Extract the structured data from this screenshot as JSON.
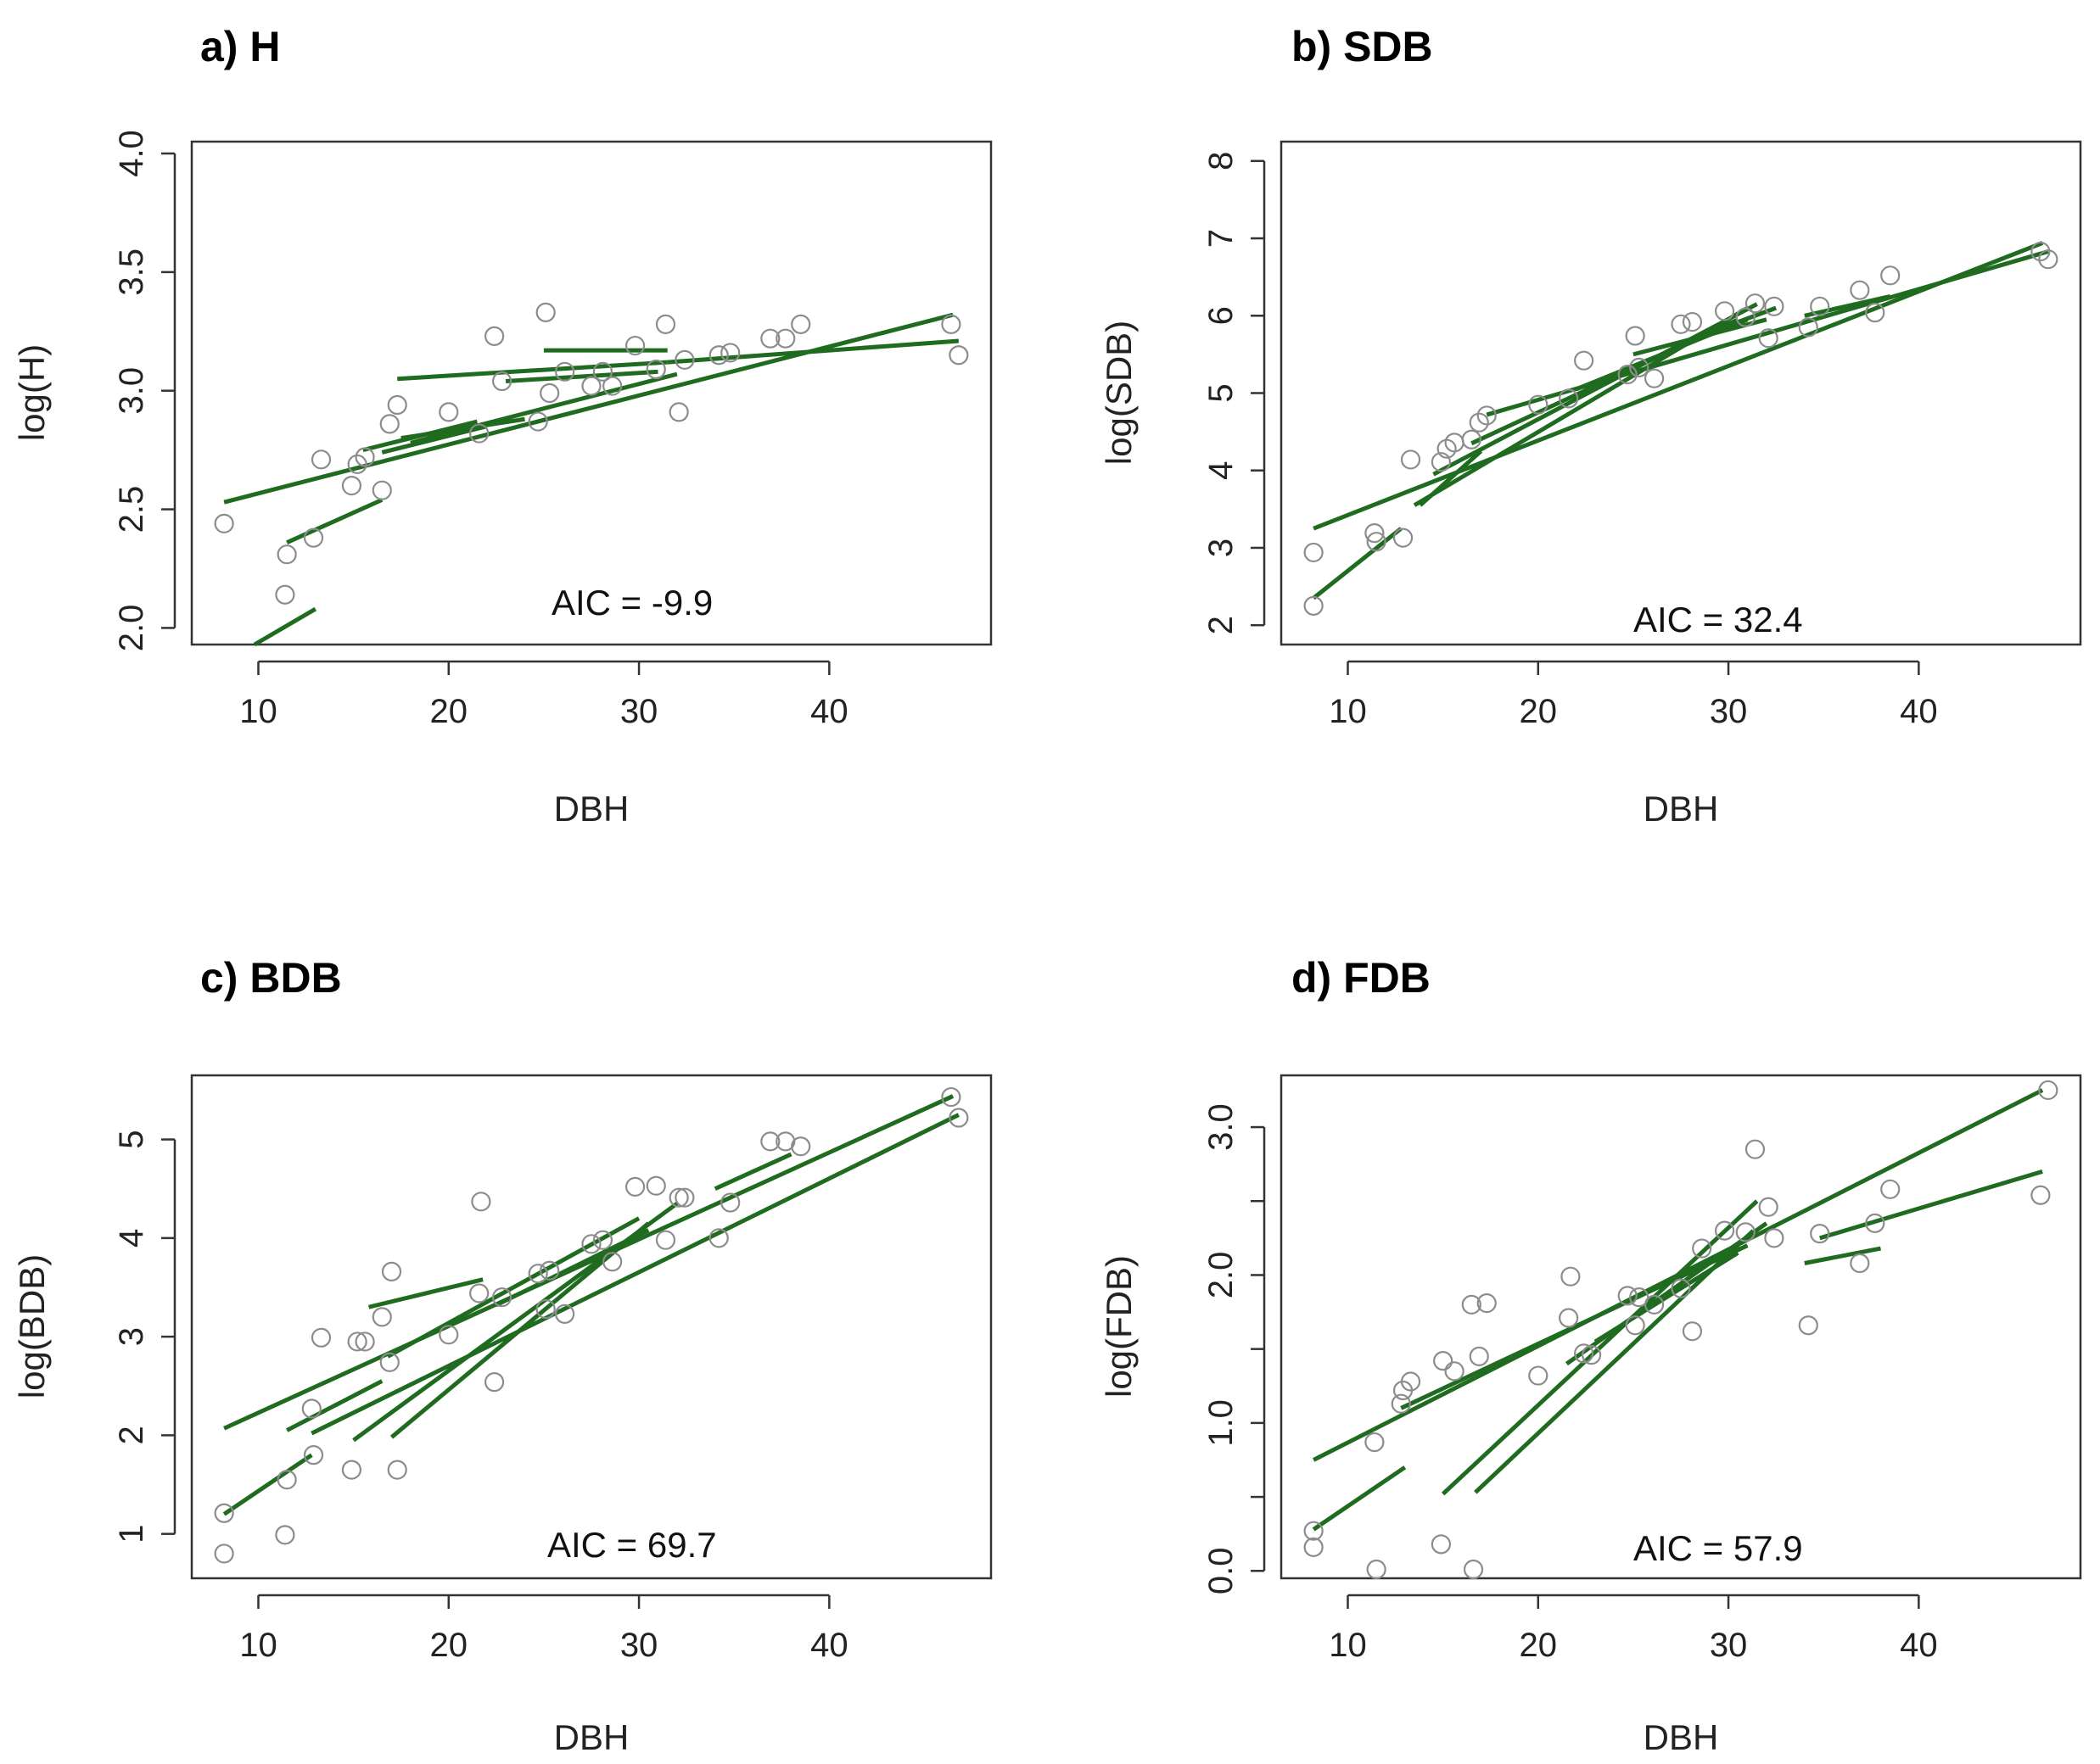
{
  "colors": {
    "fit_line": "#1f6b1f",
    "point_stroke": "#8c8c8c",
    "frame": "#333333"
  },
  "chart_data": [
    {
      "type": "scatter",
      "title": "a) H",
      "xlabel": "DBH",
      "ylabel": "log(H)",
      "annotation": "AIC = -9.9",
      "xlim": [
        6.5,
        48.5
      ],
      "ylim": [
        1.93,
        4.05
      ],
      "xticks": [
        10,
        20,
        30,
        40
      ],
      "xtick_labels": [
        "10",
        "20",
        "30",
        "40"
      ],
      "yticks": [
        2.0,
        2.5,
        3.0,
        3.5,
        4.0
      ],
      "ytick_labels": [
        "2.0",
        "2.5",
        "3.0",
        "3.5",
        "4.0"
      ],
      "points": [
        [
          8.2,
          2.44
        ],
        [
          11.4,
          2.14
        ],
        [
          11.5,
          2.31
        ],
        [
          12.9,
          2.38
        ],
        [
          13.3,
          2.71
        ],
        [
          14.9,
          2.6
        ],
        [
          15.2,
          2.69
        ],
        [
          15.6,
          2.72
        ],
        [
          16.5,
          2.58
        ],
        [
          16.9,
          2.86
        ],
        [
          17.3,
          2.94
        ],
        [
          20.0,
          2.91
        ],
        [
          21.6,
          2.82
        ],
        [
          22.4,
          3.23
        ],
        [
          22.8,
          3.04
        ],
        [
          24.7,
          2.87
        ],
        [
          25.1,
          3.33
        ],
        [
          25.3,
          2.99
        ],
        [
          26.1,
          3.08
        ],
        [
          27.5,
          3.02
        ],
        [
          28.1,
          3.08
        ],
        [
          28.6,
          3.02
        ],
        [
          29.8,
          3.19
        ],
        [
          30.9,
          3.09
        ],
        [
          31.4,
          3.28
        ],
        [
          32.1,
          2.91
        ],
        [
          32.4,
          3.13
        ],
        [
          34.2,
          3.15
        ],
        [
          34.8,
          3.16
        ],
        [
          36.9,
          3.22
        ],
        [
          37.7,
          3.22
        ],
        [
          38.5,
          3.28
        ],
        [
          46.4,
          3.28
        ],
        [
          46.8,
          3.15
        ]
      ],
      "fit_lines": [
        [
          [
            8.2,
            2.53
          ],
          [
            46.5,
            3.32
          ]
        ],
        [
          [
            17.3,
            3.05
          ],
          [
            31.5,
            3.12
          ]
        ],
        [
          [
            31.5,
            3.12
          ],
          [
            46.8,
            3.21
          ]
        ],
        [
          [
            23.0,
            3.04
          ],
          [
            31.0,
            3.08
          ]
        ],
        [
          [
            25.0,
            3.17
          ],
          [
            31.5,
            3.17
          ]
        ],
        [
          [
            15.5,
            2.75
          ],
          [
            21.5,
            2.87
          ]
        ],
        [
          [
            16.5,
            2.74
          ],
          [
            22.0,
            2.85
          ]
        ],
        [
          [
            18.0,
            2.78
          ],
          [
            32.0,
            3.07
          ]
        ],
        [
          [
            17.5,
            2.8
          ],
          [
            24.0,
            2.88
          ]
        ],
        [
          [
            11.5,
            2.36
          ],
          [
            16.5,
            2.54
          ]
        ],
        [
          [
            9.8,
            1.93
          ],
          [
            13.0,
            2.08
          ]
        ]
      ]
    },
    {
      "type": "scatter",
      "title": "b) SDB",
      "xlabel": "DBH",
      "ylabel": "log(SDB)",
      "annotation": "AIC = 32.4",
      "xlim": [
        6.5,
        48.5
      ],
      "ylim": [
        1.75,
        8.25
      ],
      "xticks": [
        10,
        20,
        30,
        40
      ],
      "xtick_labels": [
        "10",
        "20",
        "30",
        "40"
      ],
      "yticks": [
        2,
        3,
        4,
        5,
        6,
        7,
        8
      ],
      "ytick_labels": [
        "2",
        "3",
        "4",
        "5",
        "6",
        "7",
        "8"
      ],
      "points": [
        [
          8.2,
          2.94
        ],
        [
          8.2,
          2.25
        ],
        [
          11.4,
          3.19
        ],
        [
          11.5,
          3.08
        ],
        [
          12.9,
          3.13
        ],
        [
          13.3,
          4.14
        ],
        [
          14.9,
          4.11
        ],
        [
          15.2,
          4.28
        ],
        [
          15.6,
          4.36
        ],
        [
          16.5,
          4.4
        ],
        [
          16.9,
          4.62
        ],
        [
          17.3,
          4.71
        ],
        [
          20.0,
          4.85
        ],
        [
          21.6,
          4.93
        ],
        [
          22.4,
          5.42
        ],
        [
          24.7,
          5.24
        ],
        [
          25.1,
          5.74
        ],
        [
          25.3,
          5.33
        ],
        [
          26.1,
          5.19
        ],
        [
          27.5,
          5.89
        ],
        [
          28.1,
          5.92
        ],
        [
          29.8,
          6.06
        ],
        [
          30.9,
          5.98
        ],
        [
          31.4,
          6.16
        ],
        [
          32.1,
          5.71
        ],
        [
          32.4,
          6.12
        ],
        [
          34.2,
          5.85
        ],
        [
          34.8,
          6.12
        ],
        [
          36.9,
          6.33
        ],
        [
          37.7,
          6.04
        ],
        [
          38.5,
          6.52
        ],
        [
          46.4,
          6.83
        ],
        [
          46.8,
          6.73
        ]
      ],
      "fit_lines": [
        [
          [
            8.2,
            3.25
          ],
          [
            46.5,
            6.94
          ]
        ],
        [
          [
            17.3,
            4.72
          ],
          [
            46.8,
            6.83
          ]
        ],
        [
          [
            13.5,
            3.55
          ],
          [
            31.0,
            6.1
          ]
        ],
        [
          [
            14.5,
            3.95
          ],
          [
            31.5,
            6.15
          ]
        ],
        [
          [
            16.5,
            4.35
          ],
          [
            30.5,
            5.95
          ]
        ],
        [
          [
            22.0,
            5.05
          ],
          [
            31.0,
            5.95
          ]
        ],
        [
          [
            27.0,
            5.6
          ],
          [
            32.5,
            6.1
          ]
        ],
        [
          [
            34.0,
            6.0
          ],
          [
            38.5,
            6.25
          ]
        ],
        [
          [
            25.0,
            5.5
          ],
          [
            32.0,
            5.95
          ]
        ],
        [
          [
            13.8,
            3.55
          ],
          [
            17.0,
            4.25
          ]
        ],
        [
          [
            8.2,
            2.35
          ],
          [
            12.8,
            3.25
          ]
        ]
      ]
    },
    {
      "type": "scatter",
      "title": "c) BDB",
      "xlabel": "DBH",
      "ylabel": "log(BDB)",
      "annotation": "AIC = 69.7",
      "xlim": [
        6.5,
        48.5
      ],
      "ylim": [
        0.55,
        5.65
      ],
      "xticks": [
        10,
        20,
        30,
        40
      ],
      "xtick_labels": [
        "10",
        "20",
        "30",
        "40"
      ],
      "yticks": [
        1,
        2,
        3,
        4,
        5
      ],
      "ytick_labels": [
        "1",
        "2",
        "3",
        "4",
        "5"
      ],
      "points": [
        [
          8.2,
          1.21
        ],
        [
          8.2,
          0.8
        ],
        [
          11.4,
          0.99
        ],
        [
          11.5,
          1.55
        ],
        [
          12.9,
          1.8
        ],
        [
          13.3,
          2.99
        ],
        [
          12.8,
          2.27
        ],
        [
          14.9,
          1.65
        ],
        [
          15.2,
          2.95
        ],
        [
          15.6,
          2.95
        ],
        [
          16.5,
          3.2
        ],
        [
          16.9,
          2.74
        ],
        [
          17.3,
          1.65
        ],
        [
          17.0,
          3.66
        ],
        [
          20.0,
          3.02
        ],
        [
          21.6,
          3.44
        ],
        [
          21.7,
          4.37
        ],
        [
          22.4,
          2.54
        ],
        [
          22.8,
          3.4
        ],
        [
          24.7,
          3.64
        ],
        [
          25.1,
          3.28
        ],
        [
          25.3,
          3.67
        ],
        [
          26.1,
          3.23
        ],
        [
          27.5,
          3.94
        ],
        [
          28.1,
          3.98
        ],
        [
          28.6,
          3.76
        ],
        [
          29.8,
          4.52
        ],
        [
          30.9,
          4.53
        ],
        [
          31.4,
          3.98
        ],
        [
          32.1,
          4.41
        ],
        [
          32.4,
          4.41
        ],
        [
          34.2,
          4.0
        ],
        [
          34.8,
          4.36
        ],
        [
          36.9,
          4.98
        ],
        [
          37.7,
          4.98
        ],
        [
          38.5,
          4.93
        ],
        [
          46.4,
          5.43
        ],
        [
          46.8,
          5.22
        ]
      ],
      "fit_lines": [
        [
          [
            8.2,
            2.07
          ],
          [
            46.5,
            5.44
          ]
        ],
        [
          [
            12.8,
            2.02
          ],
          [
            46.8,
            5.25
          ]
        ],
        [
          [
            15.0,
            1.95
          ],
          [
            32.0,
            4.35
          ]
        ],
        [
          [
            17.0,
            1.98
          ],
          [
            30.5,
            4.15
          ]
        ],
        [
          [
            16.8,
            2.8
          ],
          [
            30.0,
            4.2
          ]
        ],
        [
          [
            22.5,
            3.32
          ],
          [
            30.5,
            4.08
          ]
        ],
        [
          [
            34.0,
            4.5
          ],
          [
            38.0,
            4.85
          ]
        ],
        [
          [
            15.8,
            3.3
          ],
          [
            21.8,
            3.58
          ]
        ],
        [
          [
            11.5,
            2.05
          ],
          [
            16.5,
            2.55
          ]
        ],
        [
          [
            8.2,
            1.2
          ],
          [
            12.8,
            1.8
          ]
        ]
      ]
    },
    {
      "type": "scatter",
      "title": "d) FDB",
      "xlabel": "DBH",
      "ylabel": "log(FDB)",
      "annotation": "AIC = 57.9",
      "xlim": [
        6.5,
        48.5
      ],
      "ylim": [
        -0.05,
        3.35
      ],
      "xticks": [
        10,
        20,
        30,
        40
      ],
      "xtick_labels": [
        "10",
        "20",
        "30",
        "40"
      ],
      "yticks": [
        0.0,
        0.5,
        1.0,
        1.5,
        2.0,
        2.5,
        3.0
      ],
      "ytick_labels": [
        "0.0",
        "",
        "1.0",
        "",
        "2.0",
        "",
        "3.0"
      ],
      "points": [
        [
          8.2,
          0.27
        ],
        [
          8.2,
          0.16
        ],
        [
          11.4,
          0.87
        ],
        [
          11.5,
          0.01
        ],
        [
          12.9,
          1.22
        ],
        [
          13.3,
          1.28
        ],
        [
          12.8,
          1.13
        ],
        [
          14.9,
          0.18
        ],
        [
          15.0,
          1.42
        ],
        [
          15.6,
          1.35
        ],
        [
          16.5,
          1.8
        ],
        [
          16.6,
          0.01
        ],
        [
          16.9,
          1.45
        ],
        [
          17.3,
          1.81
        ],
        [
          20.0,
          1.32
        ],
        [
          21.6,
          1.71
        ],
        [
          21.7,
          1.99
        ],
        [
          22.4,
          1.47
        ],
        [
          22.8,
          1.46
        ],
        [
          24.7,
          1.86
        ],
        [
          25.1,
          1.66
        ],
        [
          25.3,
          1.85
        ],
        [
          26.1,
          1.8
        ],
        [
          27.5,
          1.91
        ],
        [
          28.1,
          1.62
        ],
        [
          28.6,
          2.18
        ],
        [
          29.8,
          2.3
        ],
        [
          30.9,
          2.29
        ],
        [
          31.4,
          2.85
        ],
        [
          32.1,
          2.46
        ],
        [
          32.4,
          2.25
        ],
        [
          34.2,
          1.66
        ],
        [
          34.8,
          2.28
        ],
        [
          36.9,
          2.08
        ],
        [
          37.7,
          2.35
        ],
        [
          38.5,
          2.58
        ],
        [
          46.4,
          2.54
        ],
        [
          46.8,
          3.25
        ]
      ],
      "fit_lines": [
        [
          [
            8.2,
            0.75
          ],
          [
            46.5,
            3.25
          ]
        ],
        [
          [
            12.8,
            1.1
          ],
          [
            31.0,
            2.2
          ]
        ],
        [
          [
            15.0,
            0.52
          ],
          [
            31.5,
            2.5
          ]
        ],
        [
          [
            16.7,
            0.53
          ],
          [
            31.3,
            2.3
          ]
        ],
        [
          [
            21.5,
            1.4
          ],
          [
            32.0,
            2.35
          ]
        ],
        [
          [
            23.0,
            1.55
          ],
          [
            30.5,
            2.15
          ]
        ],
        [
          [
            34.8,
            2.25
          ],
          [
            46.5,
            2.7
          ]
        ],
        [
          [
            34.0,
            2.08
          ],
          [
            38.0,
            2.18
          ]
        ],
        [
          [
            8.2,
            0.28
          ],
          [
            13.0,
            0.7
          ]
        ]
      ]
    }
  ]
}
